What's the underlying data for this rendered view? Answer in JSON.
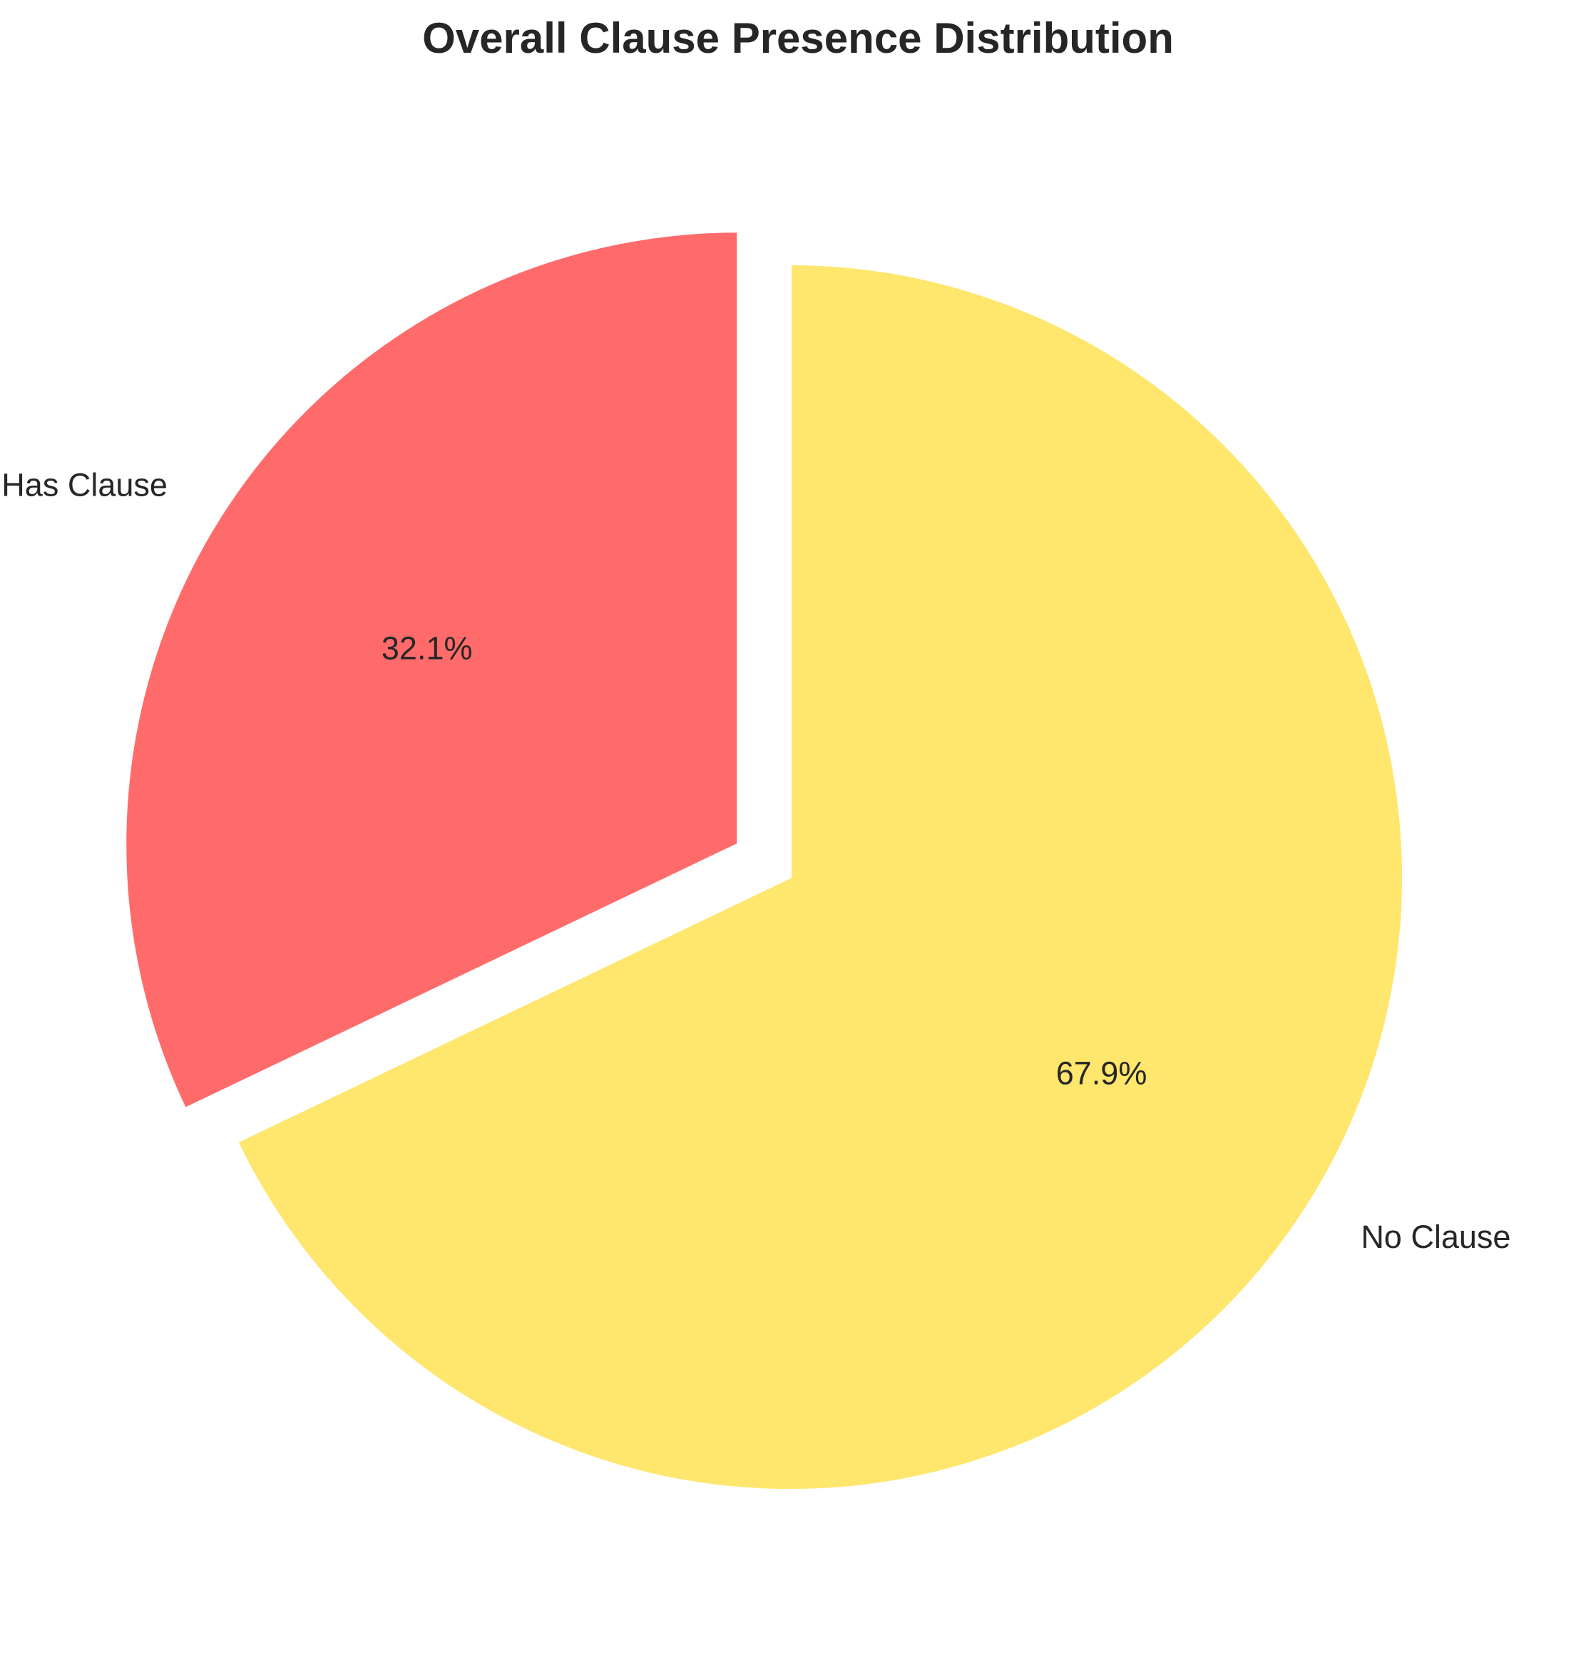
{
  "chart_data": {
    "type": "pie",
    "title": "Overall Clause Presence Distribution",
    "categories": [
      "Has Clause",
      "No Clause"
    ],
    "values": [
      32.1,
      67.9
    ],
    "value_labels": [
      "32.1%",
      "67.9%"
    ],
    "colors": [
      "#FF6B6B",
      "#FFE66D"
    ],
    "exploded": [
      "Has Clause"
    ],
    "start_angle_deg": 90,
    "direction": "counterclockwise",
    "edge_color": "#FFFFFF"
  }
}
